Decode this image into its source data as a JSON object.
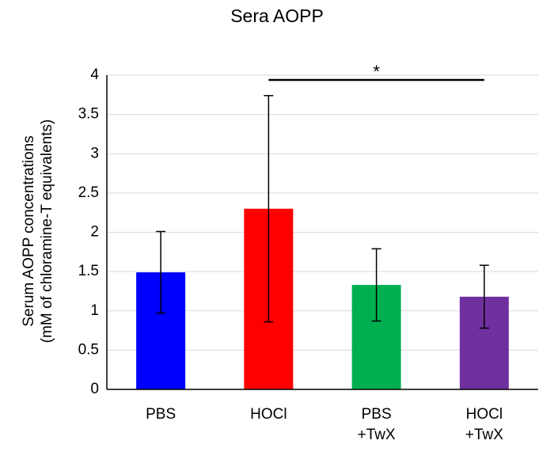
{
  "chart_data": {
    "type": "bar",
    "title": "Sera AOPP",
    "ylabel": [
      "Serum AOPP concentrations",
      "(mM of chloramine-T equivalents)"
    ],
    "categories": [
      [
        "PBS"
      ],
      [
        "HOCl"
      ],
      [
        "PBS",
        "+TwX"
      ],
      [
        "HOCl",
        "+TwX"
      ]
    ],
    "values": [
      1.49,
      2.3,
      1.33,
      1.18
    ],
    "errors": [
      0.52,
      1.44,
      0.46,
      0.4
    ],
    "colors": [
      "#0000ff",
      "#ff0000",
      "#00b050",
      "#7030a0"
    ],
    "ylim": [
      0,
      4
    ],
    "yticks": [
      0,
      0.5,
      1,
      1.5,
      2,
      2.5,
      3,
      3.5,
      4
    ],
    "grid": true,
    "significance": {
      "label": "*",
      "groups": [
        1,
        3
      ]
    }
  }
}
